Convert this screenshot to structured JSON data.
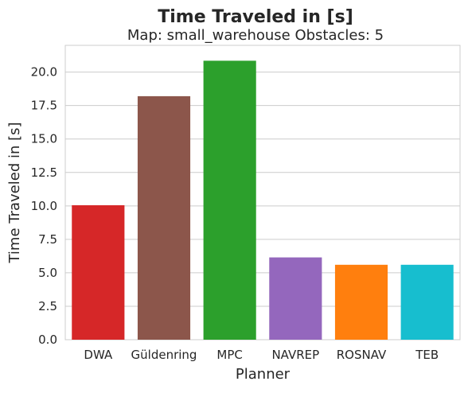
{
  "chart_data": {
    "type": "bar",
    "title": "Time Traveled in [s]",
    "subtitle": "Map: small_warehouse Obstacles: 5",
    "xlabel": "Planner",
    "ylabel": "Time Traveled in [s]",
    "categories": [
      "DWA",
      "Güldenring",
      "MPC",
      "NAVREP",
      "ROSNAV",
      "TEB"
    ],
    "values": [
      10.05,
      18.2,
      20.85,
      6.15,
      5.6,
      5.6
    ],
    "colors": [
      "#d62728",
      "#8c564b",
      "#2ca02c",
      "#9467bd",
      "#ff7f0e",
      "#17becf"
    ],
    "ylim": [
      0,
      22
    ],
    "yticks": [
      "0.0",
      "2.5",
      "5.0",
      "7.5",
      "10.0",
      "12.5",
      "15.0",
      "17.5",
      "20.0"
    ],
    "grid": true,
    "legend": "none"
  }
}
